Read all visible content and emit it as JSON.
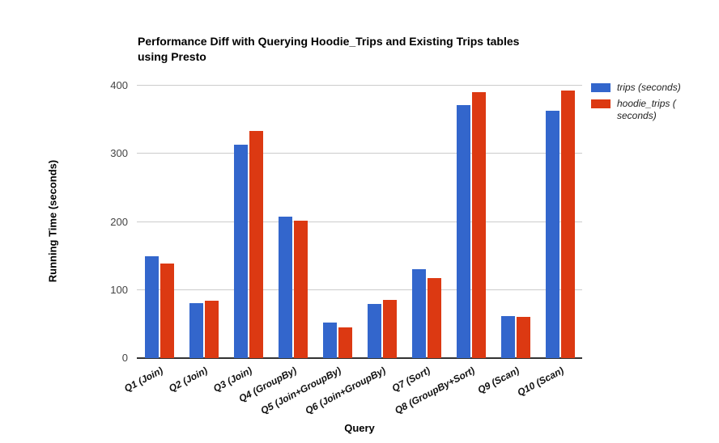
{
  "chart_data": {
    "type": "bar",
    "title": "Performance Diff with Querying Hoodie_Trips and Existing Trips tables using Presto",
    "title_lines": [
      "Performance Diff with Querying Hoodie_Trips and Existing Trips tables",
      "using Presto"
    ],
    "xlabel": "Query",
    "ylabel": "Running Time (seconds)",
    "categories": [
      "Q1 (Join)",
      "Q2 (Join)",
      "Q3 (Join)",
      "Q4 (GroupBy)",
      "Q5 (Join+GroupBy)",
      "Q6 (Join+GroupBy)",
      "Q7 (Sort)",
      "Q8 (GroupBy+Sort)",
      "Q9 (Scan)",
      "Q10 (Scan)"
    ],
    "series": [
      {
        "name": "trips (seconds)",
        "color": "#3366CC",
        "values": [
          150,
          81,
          313,
          208,
          52,
          80,
          131,
          371,
          62,
          363
        ]
      },
      {
        "name": "hoodie_trips ( seconds)",
        "color": "#DC3912",
        "values": [
          139,
          84,
          333,
          202,
          45,
          85,
          117,
          390,
          60,
          393
        ]
      }
    ],
    "ylim": [
      0,
      400
    ],
    "yticks": [
      0,
      100,
      200,
      300,
      400
    ],
    "grid": true,
    "legend_position": "right",
    "colors": {
      "gridline": "#cccccc",
      "axis_line": "#333333",
      "tick_label": "#444444"
    }
  }
}
